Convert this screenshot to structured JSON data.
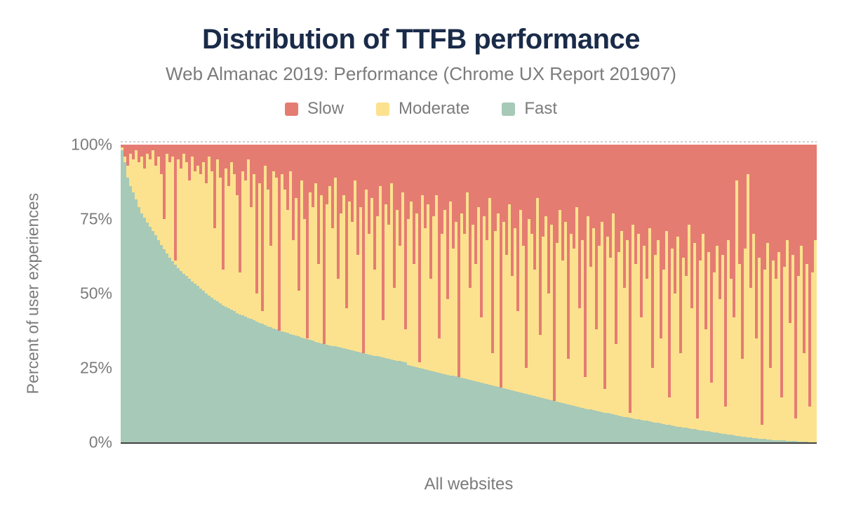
{
  "title": "Distribution of TTFB performance",
  "subtitle": "Web Almanac 2019: Performance (Chrome UX Report 201907)",
  "legend": [
    {
      "label": "Slow",
      "color_key": "slow"
    },
    {
      "label": "Moderate",
      "color_key": "moderate"
    },
    {
      "label": "Fast",
      "color_key": "fast"
    }
  ],
  "colors": {
    "slow": "#e57c72",
    "moderate": "#fce28e",
    "fast": "#a7c9b7",
    "title": "#1a2b49",
    "text": "#7b7b7b",
    "axis_line": "#424242",
    "gridline": "#cfcfcf"
  },
  "y_axis": {
    "title": "Percent of user experiences",
    "ticks": [
      "100%",
      "75%",
      "50%",
      "25%",
      "0%"
    ]
  },
  "x_axis": {
    "label": "All websites"
  },
  "chart_data": {
    "type": "bar",
    "stacked": true,
    "normalized_percent": true,
    "title": "Distribution of TTFB performance",
    "xlabel": "All websites",
    "ylabel": "Percent of user experiences",
    "ylim": [
      0,
      100
    ],
    "legend_position": "top",
    "grid": "dashed line at 100% only, solid axis line at 0%",
    "x_description": "Individual websites, one bar each, sorted descending by percent of fast TTFB experiences; no per-bar labels shown",
    "series_order_bottom_to_top": [
      "Fast",
      "Moderate",
      "Slow"
    ],
    "value_semantics": "fast = bottom green stack height (%); moderate = max(0, fast_plus_moderate - fast); slow = remainder up to 100%",
    "bars": {
      "fast": [
        98,
        94,
        89,
        86,
        84,
        81.5,
        79,
        77,
        75.4,
        73.8,
        72.3,
        70.9,
        69.5,
        67.9,
        66.3,
        64.8,
        63.4,
        62,
        60.8,
        59.7,
        58.5,
        57.6,
        56.7,
        55.8,
        54.9,
        54.1,
        53.3,
        52.5,
        51.7,
        50.9,
        50.1,
        49.3,
        48.5,
        47.9,
        47.3,
        46.7,
        46.1,
        45.5,
        45,
        44.5,
        44,
        43.5,
        43,
        42.6,
        42.2,
        41.8,
        41.4,
        41,
        40.6,
        40.2,
        39.8,
        39.4,
        39,
        38.7,
        38.3,
        38,
        37.6,
        37.3,
        37,
        36.7,
        36.4,
        36.1,
        35.8,
        35.5,
        35.2,
        34.9,
        34.6,
        34.4,
        34.1,
        33.8,
        33.5,
        33.3,
        33,
        32.8,
        32.6,
        32.4,
        32.2,
        32,
        31.8,
        31.6,
        31.3,
        31.1,
        30.9,
        30.7,
        30.4,
        30.2,
        30,
        29.8,
        29.5,
        29.3,
        29.1,
        28.9,
        28.7,
        28.5,
        28.2,
        28,
        27.8,
        27.6,
        27.4,
        27.3,
        27.1,
        26.8,
        26,
        25.8,
        25.5,
        25.3,
        25,
        24.8,
        24.5,
        24.3,
        24,
        23.8,
        23.5,
        23.3,
        23.1,
        22.9,
        22.7,
        22.5,
        22.3,
        22.1,
        21.9,
        21.7,
        21.5,
        21.3,
        21,
        20.8,
        20.5,
        20.3,
        20,
        19.8,
        19.5,
        19.3,
        19,
        18.8,
        18.6,
        18.3,
        18.1,
        17.9,
        17.7,
        17.5,
        17.2,
        17,
        16.8,
        16.6,
        16.3,
        16.1,
        15.8,
        15.6,
        15.3,
        15.1,
        14.8,
        14.6,
        14.3,
        14.1,
        13.9,
        13.6,
        13.4,
        13.2,
        12.9,
        12.7,
        12.5,
        12.2,
        12,
        11.8,
        11.6,
        11.4,
        11.2,
        11,
        10.8,
        10.6,
        10.4,
        10.2,
        10,
        9.8,
        9.6,
        9.4,
        9.2,
        9,
        8.8,
        8.6,
        8.4,
        8.2,
        8,
        7.8,
        7.7,
        7.5,
        7.3,
        7.2,
        7,
        6.8,
        6.6,
        6.5,
        6.3,
        6.1,
        6,
        5.8,
        5.7,
        5.5,
        5.3,
        5.2,
        5,
        4.9,
        4.7,
        4.6,
        4.4,
        4.3,
        4.1,
        4,
        3.8,
        3.7,
        3.5,
        3.4,
        3.2,
        3.1,
        2.9,
        2.8,
        2.6,
        2.5,
        2.4,
        2.2,
        2.1,
        1.9,
        1.8,
        1.7,
        1.6,
        1.5,
        1.4,
        1.3,
        1.2,
        1.1,
        1,
        0.9,
        0.8,
        0.75,
        0.7,
        0.65,
        0.6,
        0.55,
        0.5,
        0.45,
        0.4,
        0.35,
        0.3,
        0.25,
        0.2,
        0.1,
        0.05,
        0
      ],
      "fast_plus_moderate": [
        99,
        96,
        93,
        97,
        95,
        98,
        94,
        96,
        92,
        97,
        95,
        98,
        93,
        96,
        90,
        75,
        97,
        94,
        96,
        61,
        95,
        92,
        97,
        94,
        88,
        96,
        91,
        93,
        90,
        94,
        87,
        96,
        91,
        72,
        95,
        89,
        58,
        92,
        86,
        94,
        90,
        83,
        57,
        91,
        88,
        95,
        79,
        90,
        50,
        87,
        44,
        93,
        85,
        66,
        91,
        89,
        33,
        90,
        85,
        78,
        91,
        68,
        82,
        51,
        88,
        75,
        35,
        84,
        79,
        87,
        60,
        83,
        30,
        80,
        86,
        72,
        89,
        55,
        77,
        83,
        45,
        81,
        74,
        88,
        63,
        79,
        28,
        85,
        70,
        82,
        58,
        76,
        86,
        41,
        80,
        73,
        87,
        52,
        78,
        66,
        84,
        38,
        75,
        81,
        60,
        77,
        27,
        83,
        72,
        80,
        55,
        76,
        83,
        35,
        70,
        78,
        48,
        81,
        65,
        74,
        20,
        77,
        70,
        84,
        52,
        73,
        60,
        79,
        42,
        76,
        68,
        82,
        30,
        71,
        77,
        15,
        74,
        63,
        80,
        56,
        72,
        44,
        78,
        66,
        25,
        75,
        70,
        58,
        82,
        36,
        69,
        76,
        50,
        73,
        12,
        67,
        78,
        61,
        74,
        28,
        70,
        65,
        79,
        45,
        68,
        22,
        76,
        59,
        72,
        38,
        66,
        74,
        18,
        69,
        62,
        77,
        33,
        64,
        71,
        52,
        68,
        10,
        73,
        60,
        70,
        42,
        66,
        55,
        72,
        25,
        63,
        68,
        35,
        58,
        71,
        15,
        65,
        50,
        69,
        30,
        62,
        56,
        73,
        45,
        67,
        8,
        61,
        70,
        38,
        64,
        20,
        57,
        66,
        48,
        63,
        12,
        68,
        55,
        42,
        88,
        60,
        28,
        65,
        90,
        52,
        70,
        35,
        62,
        6,
        58,
        67,
        25,
        61,
        55,
        64,
        15,
        59,
        68,
        40,
        63,
        8,
        56,
        66,
        30,
        60,
        12,
        57,
        68
      ]
    }
  }
}
